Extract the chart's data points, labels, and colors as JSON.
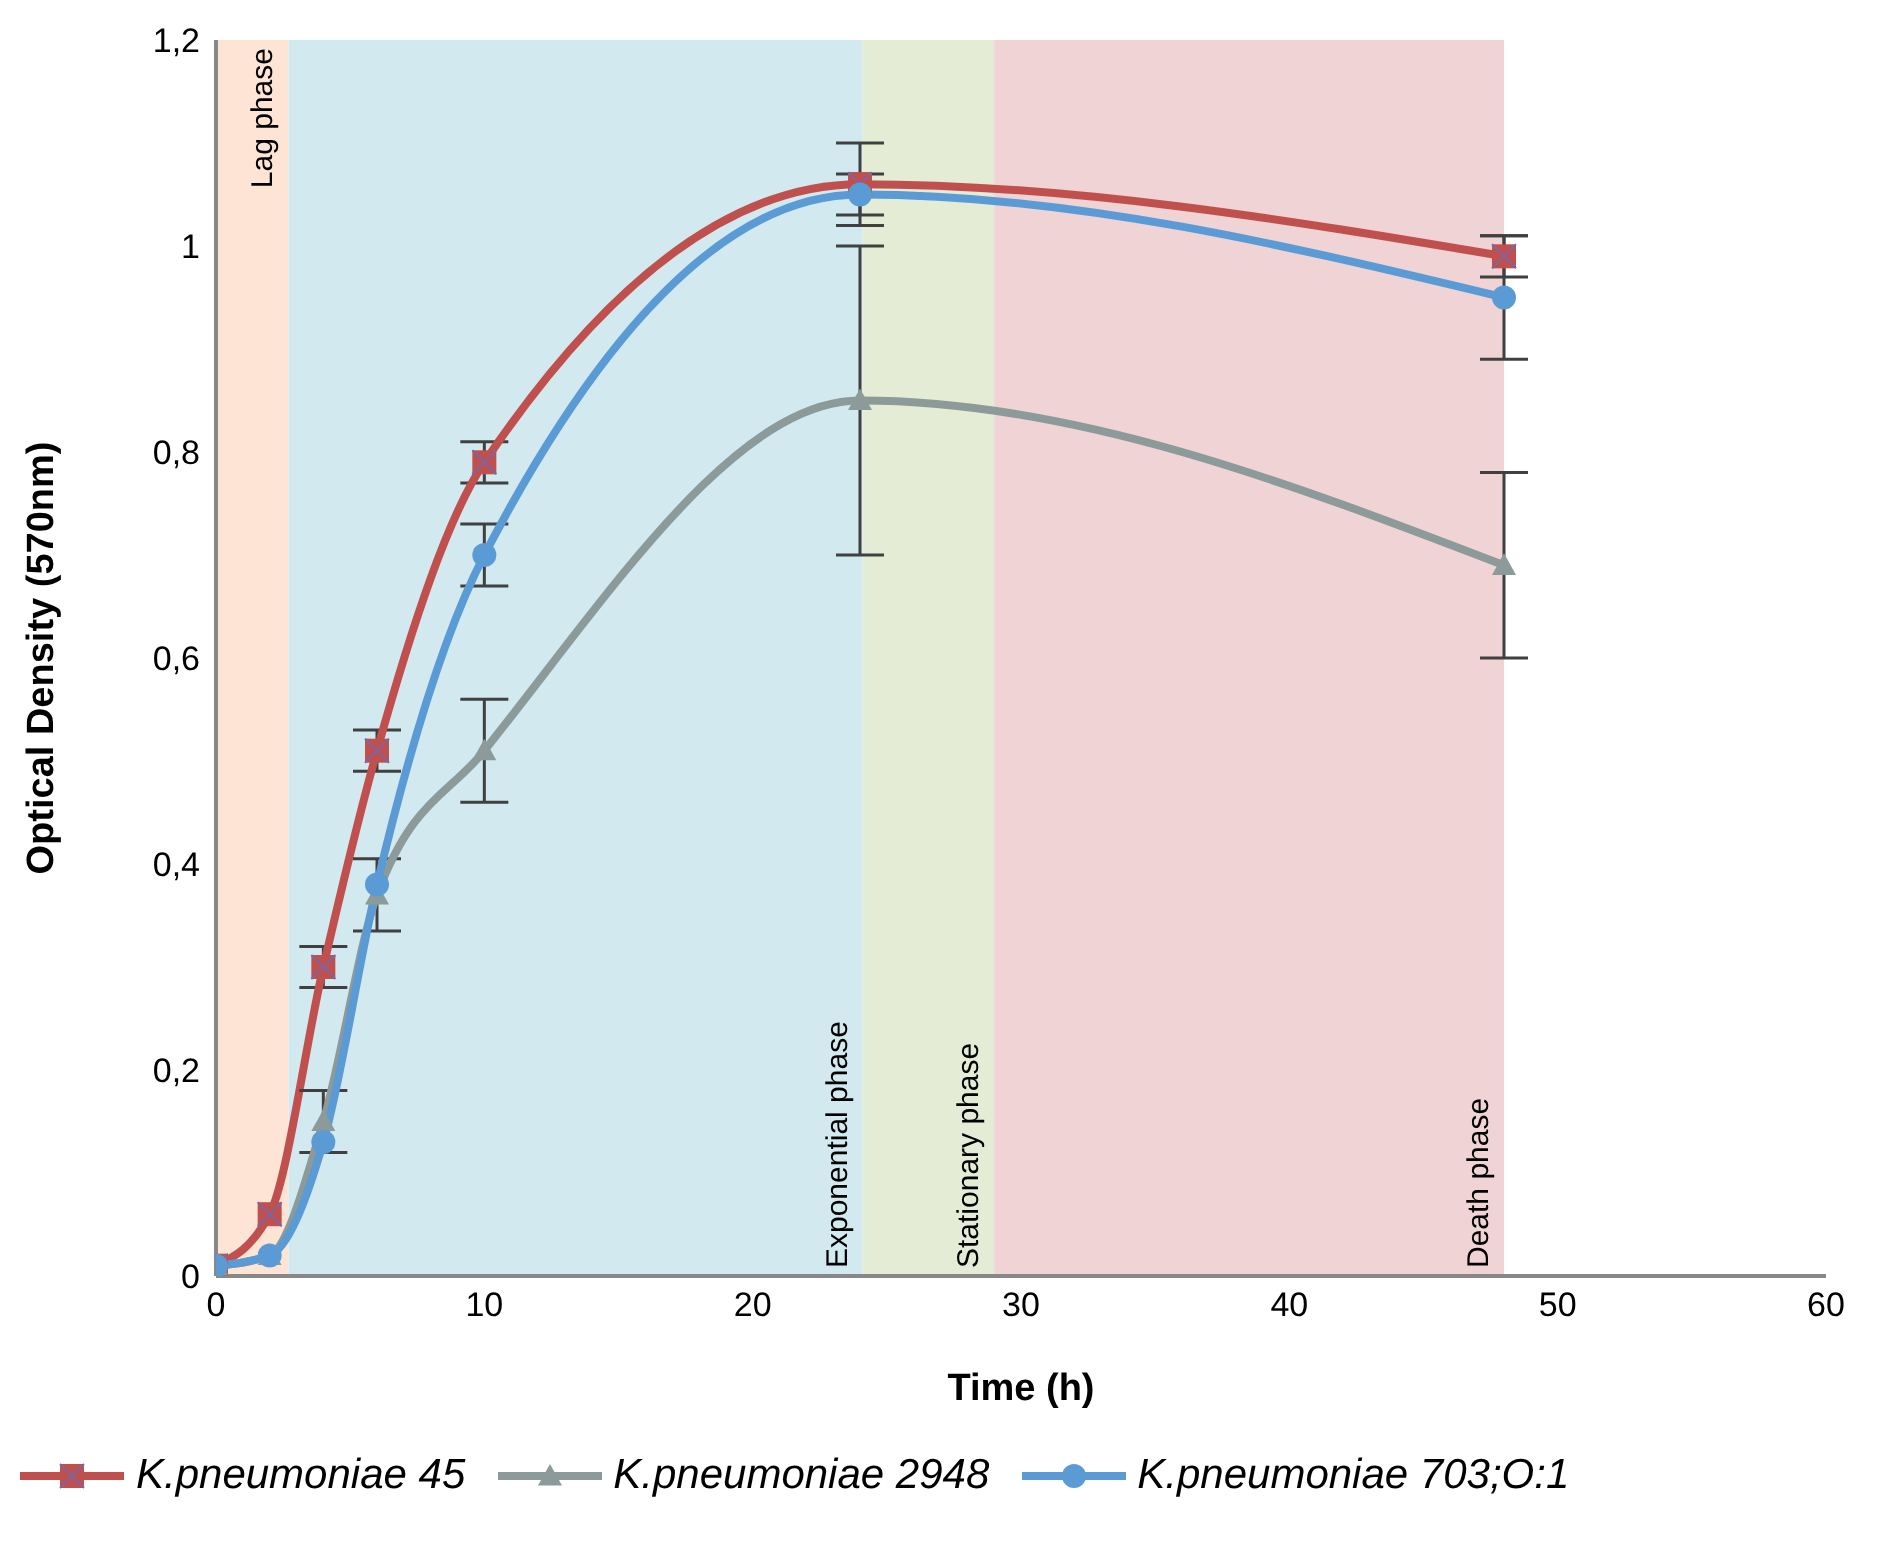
{
  "chart_data": {
    "type": "line",
    "xlabel": "Time (h)",
    "ylabel": "Optical Density (570nm)",
    "x": [
      0,
      2,
      4,
      6,
      10,
      24,
      48
    ],
    "series": [
      {
        "name": "K.pneumoniae 45",
        "color": "#c0504d",
        "marker": "square",
        "values": [
          0.01,
          0.06,
          0.3,
          0.51,
          0.79,
          1.06,
          0.99
        ],
        "errors": [
          null,
          null,
          0.02,
          0.02,
          0.02,
          0.04,
          0.02
        ]
      },
      {
        "name": "K.pneumoniae 2948",
        "color": "#8c9a9a",
        "marker": "triangle",
        "values": [
          0.01,
          0.02,
          0.15,
          0.37,
          0.51,
          0.85,
          0.69
        ],
        "errors": [
          null,
          null,
          0.03,
          0.035,
          0.05,
          0.15,
          0.09
        ]
      },
      {
        "name": "K.pneumoniae 703;O:1",
        "color": "#5b9bd5",
        "marker": "circle",
        "values": [
          0.01,
          0.02,
          0.13,
          0.38,
          0.7,
          1.05,
          0.95
        ],
        "errors": [
          null,
          null,
          null,
          null,
          0.03,
          0.02,
          0.06
        ]
      }
    ],
    "xlim": [
      0,
      60
    ],
    "xticks": [
      0,
      10,
      20,
      30,
      40,
      50,
      60
    ],
    "ylim": [
      0,
      1.2
    ],
    "yticks": [
      0,
      {
        "value": 0.2,
        "label": "0,2"
      },
      {
        "value": 0.4,
        "label": "0,4"
      },
      {
        "value": 0.6,
        "label": "0,6"
      },
      {
        "value": 0.8,
        "label": "0,8"
      },
      1,
      {
        "value": 1.2,
        "label": "1,2"
      }
    ],
    "bands": [
      {
        "axis": "x",
        "from": 0,
        "to": 2.7,
        "label": "Lag phase",
        "color": "#fde4d4"
      },
      {
        "axis": "x",
        "from": 2.7,
        "to": 24.1,
        "label": "Exponential phase",
        "color": "#d3e9f0"
      },
      {
        "axis": "x",
        "from": 24.1,
        "to": 29,
        "label": "Stationary phase",
        "color": "#e5ecd6"
      },
      {
        "axis": "x",
        "from": 29,
        "to": 48,
        "label": "Death phase",
        "color": "#efd3d5"
      }
    ],
    "legend": "bottom",
    "line_style": "solid"
  }
}
